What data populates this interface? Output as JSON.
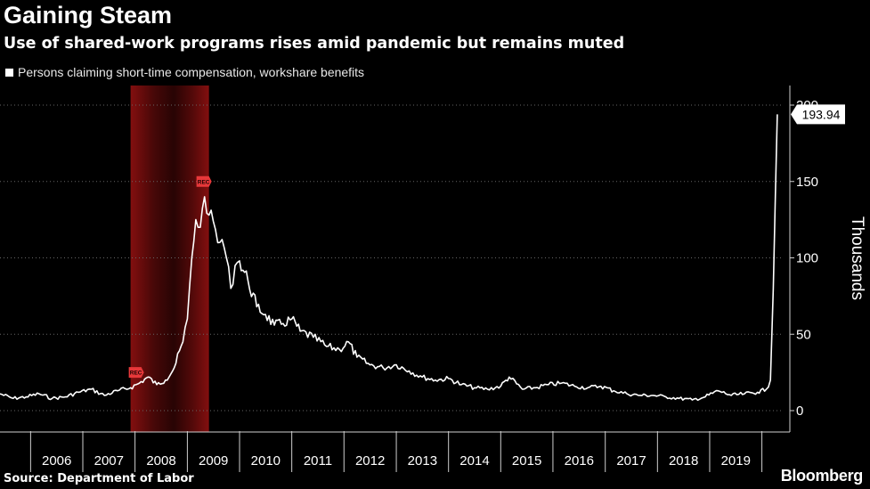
{
  "header": {
    "title": "Gaining Steam",
    "subtitle": "Use of shared-work programs rises amid pandemic but remains muted"
  },
  "legend": {
    "label": "Persons claiming short-time compensation, workshare benefits"
  },
  "footer": {
    "source": "Source: Department of Labor",
    "brand": "Bloomberg"
  },
  "colors": {
    "background": "#000000",
    "line": "#ffffff",
    "recession": "#7a0d0d",
    "grid": "#666666",
    "rec_marker": "#e8383a"
  },
  "chart_data": {
    "type": "line",
    "title": "Gaining Steam",
    "subtitle": "Use of shared-work programs rises amid pandemic but remains muted",
    "ylabel": "Thousands",
    "xlabel": "",
    "ylim": [
      -15,
      215
    ],
    "yticks": [
      0,
      50,
      100,
      150,
      200
    ],
    "xlim": [
      "2005-06-01",
      "2020-06-01"
    ],
    "year_ticks": [
      "2006",
      "2007",
      "2008",
      "2009",
      "2010",
      "2011",
      "2012",
      "2013",
      "2014",
      "2015",
      "2016",
      "2017",
      "2018",
      "2019"
    ],
    "grid": "horizontal dotted",
    "legend_position": "top-left",
    "recession_period": {
      "start": "2007-12-01",
      "end": "2009-06-01",
      "marker_label": "REC"
    },
    "last_value_label": "193.94",
    "series": [
      {
        "name": "Persons claiming short-time compensation, workshare benefits",
        "points": [
          [
            "2005-06-01",
            11
          ],
          [
            "2005-09-01",
            8
          ],
          [
            "2005-12-01",
            9
          ],
          [
            "2006-03-01",
            11
          ],
          [
            "2006-06-01",
            8
          ],
          [
            "2006-09-01",
            9
          ],
          [
            "2006-12-01",
            12
          ],
          [
            "2007-03-01",
            14
          ],
          [
            "2007-06-01",
            10
          ],
          [
            "2007-09-01",
            13
          ],
          [
            "2007-12-01",
            15
          ],
          [
            "2008-02-01",
            18
          ],
          [
            "2008-04-01",
            22
          ],
          [
            "2008-06-01",
            17
          ],
          [
            "2008-08-01",
            20
          ],
          [
            "2008-10-01",
            28
          ],
          [
            "2008-12-01",
            45
          ],
          [
            "2009-01-01",
            60
          ],
          [
            "2009-02-01",
            100
          ],
          [
            "2009-03-01",
            125
          ],
          [
            "2009-04-01",
            120
          ],
          [
            "2009-05-01",
            140
          ],
          [
            "2009-06-01",
            128
          ],
          [
            "2009-07-01",
            124
          ],
          [
            "2009-08-01",
            110
          ],
          [
            "2009-09-01",
            112
          ],
          [
            "2009-10-01",
            100
          ],
          [
            "2009-11-01",
            80
          ],
          [
            "2009-12-01",
            95
          ],
          [
            "2010-01-01",
            98
          ],
          [
            "2010-03-01",
            85
          ],
          [
            "2010-05-01",
            68
          ],
          [
            "2010-07-01",
            63
          ],
          [
            "2010-09-01",
            56
          ],
          [
            "2010-11-01",
            57
          ],
          [
            "2011-01-01",
            60
          ],
          [
            "2011-03-01",
            52
          ],
          [
            "2011-06-01",
            48
          ],
          [
            "2011-09-01",
            42
          ],
          [
            "2011-12-01",
            40
          ],
          [
            "2012-02-01",
            45
          ],
          [
            "2012-04-01",
            35
          ],
          [
            "2012-07-01",
            30
          ],
          [
            "2012-10-01",
            28
          ],
          [
            "2013-01-01",
            30
          ],
          [
            "2013-04-01",
            26
          ],
          [
            "2013-07-01",
            22
          ],
          [
            "2013-10-01",
            20
          ],
          [
            "2014-01-01",
            21
          ],
          [
            "2014-04-01",
            17
          ],
          [
            "2014-07-01",
            15
          ],
          [
            "2014-10-01",
            14
          ],
          [
            "2015-01-01",
            16
          ],
          [
            "2015-03-01",
            22
          ],
          [
            "2015-06-01",
            14
          ],
          [
            "2015-09-01",
            15
          ],
          [
            "2015-12-01",
            17
          ],
          [
            "2016-03-01",
            18
          ],
          [
            "2016-06-01",
            16
          ],
          [
            "2016-09-01",
            15
          ],
          [
            "2016-12-01",
            16
          ],
          [
            "2017-03-01",
            13
          ],
          [
            "2017-06-01",
            11
          ],
          [
            "2017-09-01",
            10
          ],
          [
            "2017-12-01",
            10
          ],
          [
            "2018-03-01",
            9
          ],
          [
            "2018-06-01",
            8
          ],
          [
            "2018-09-01",
            7
          ],
          [
            "2018-12-01",
            9
          ],
          [
            "2019-03-01",
            13
          ],
          [
            "2019-06-01",
            10
          ],
          [
            "2019-09-01",
            11
          ],
          [
            "2019-12-01",
            12
          ],
          [
            "2020-02-01",
            14
          ],
          [
            "2020-03-01",
            20
          ],
          [
            "2020-03-21",
            80
          ],
          [
            "2020-04-04",
            140
          ],
          [
            "2020-04-18",
            193.94
          ]
        ]
      }
    ]
  }
}
